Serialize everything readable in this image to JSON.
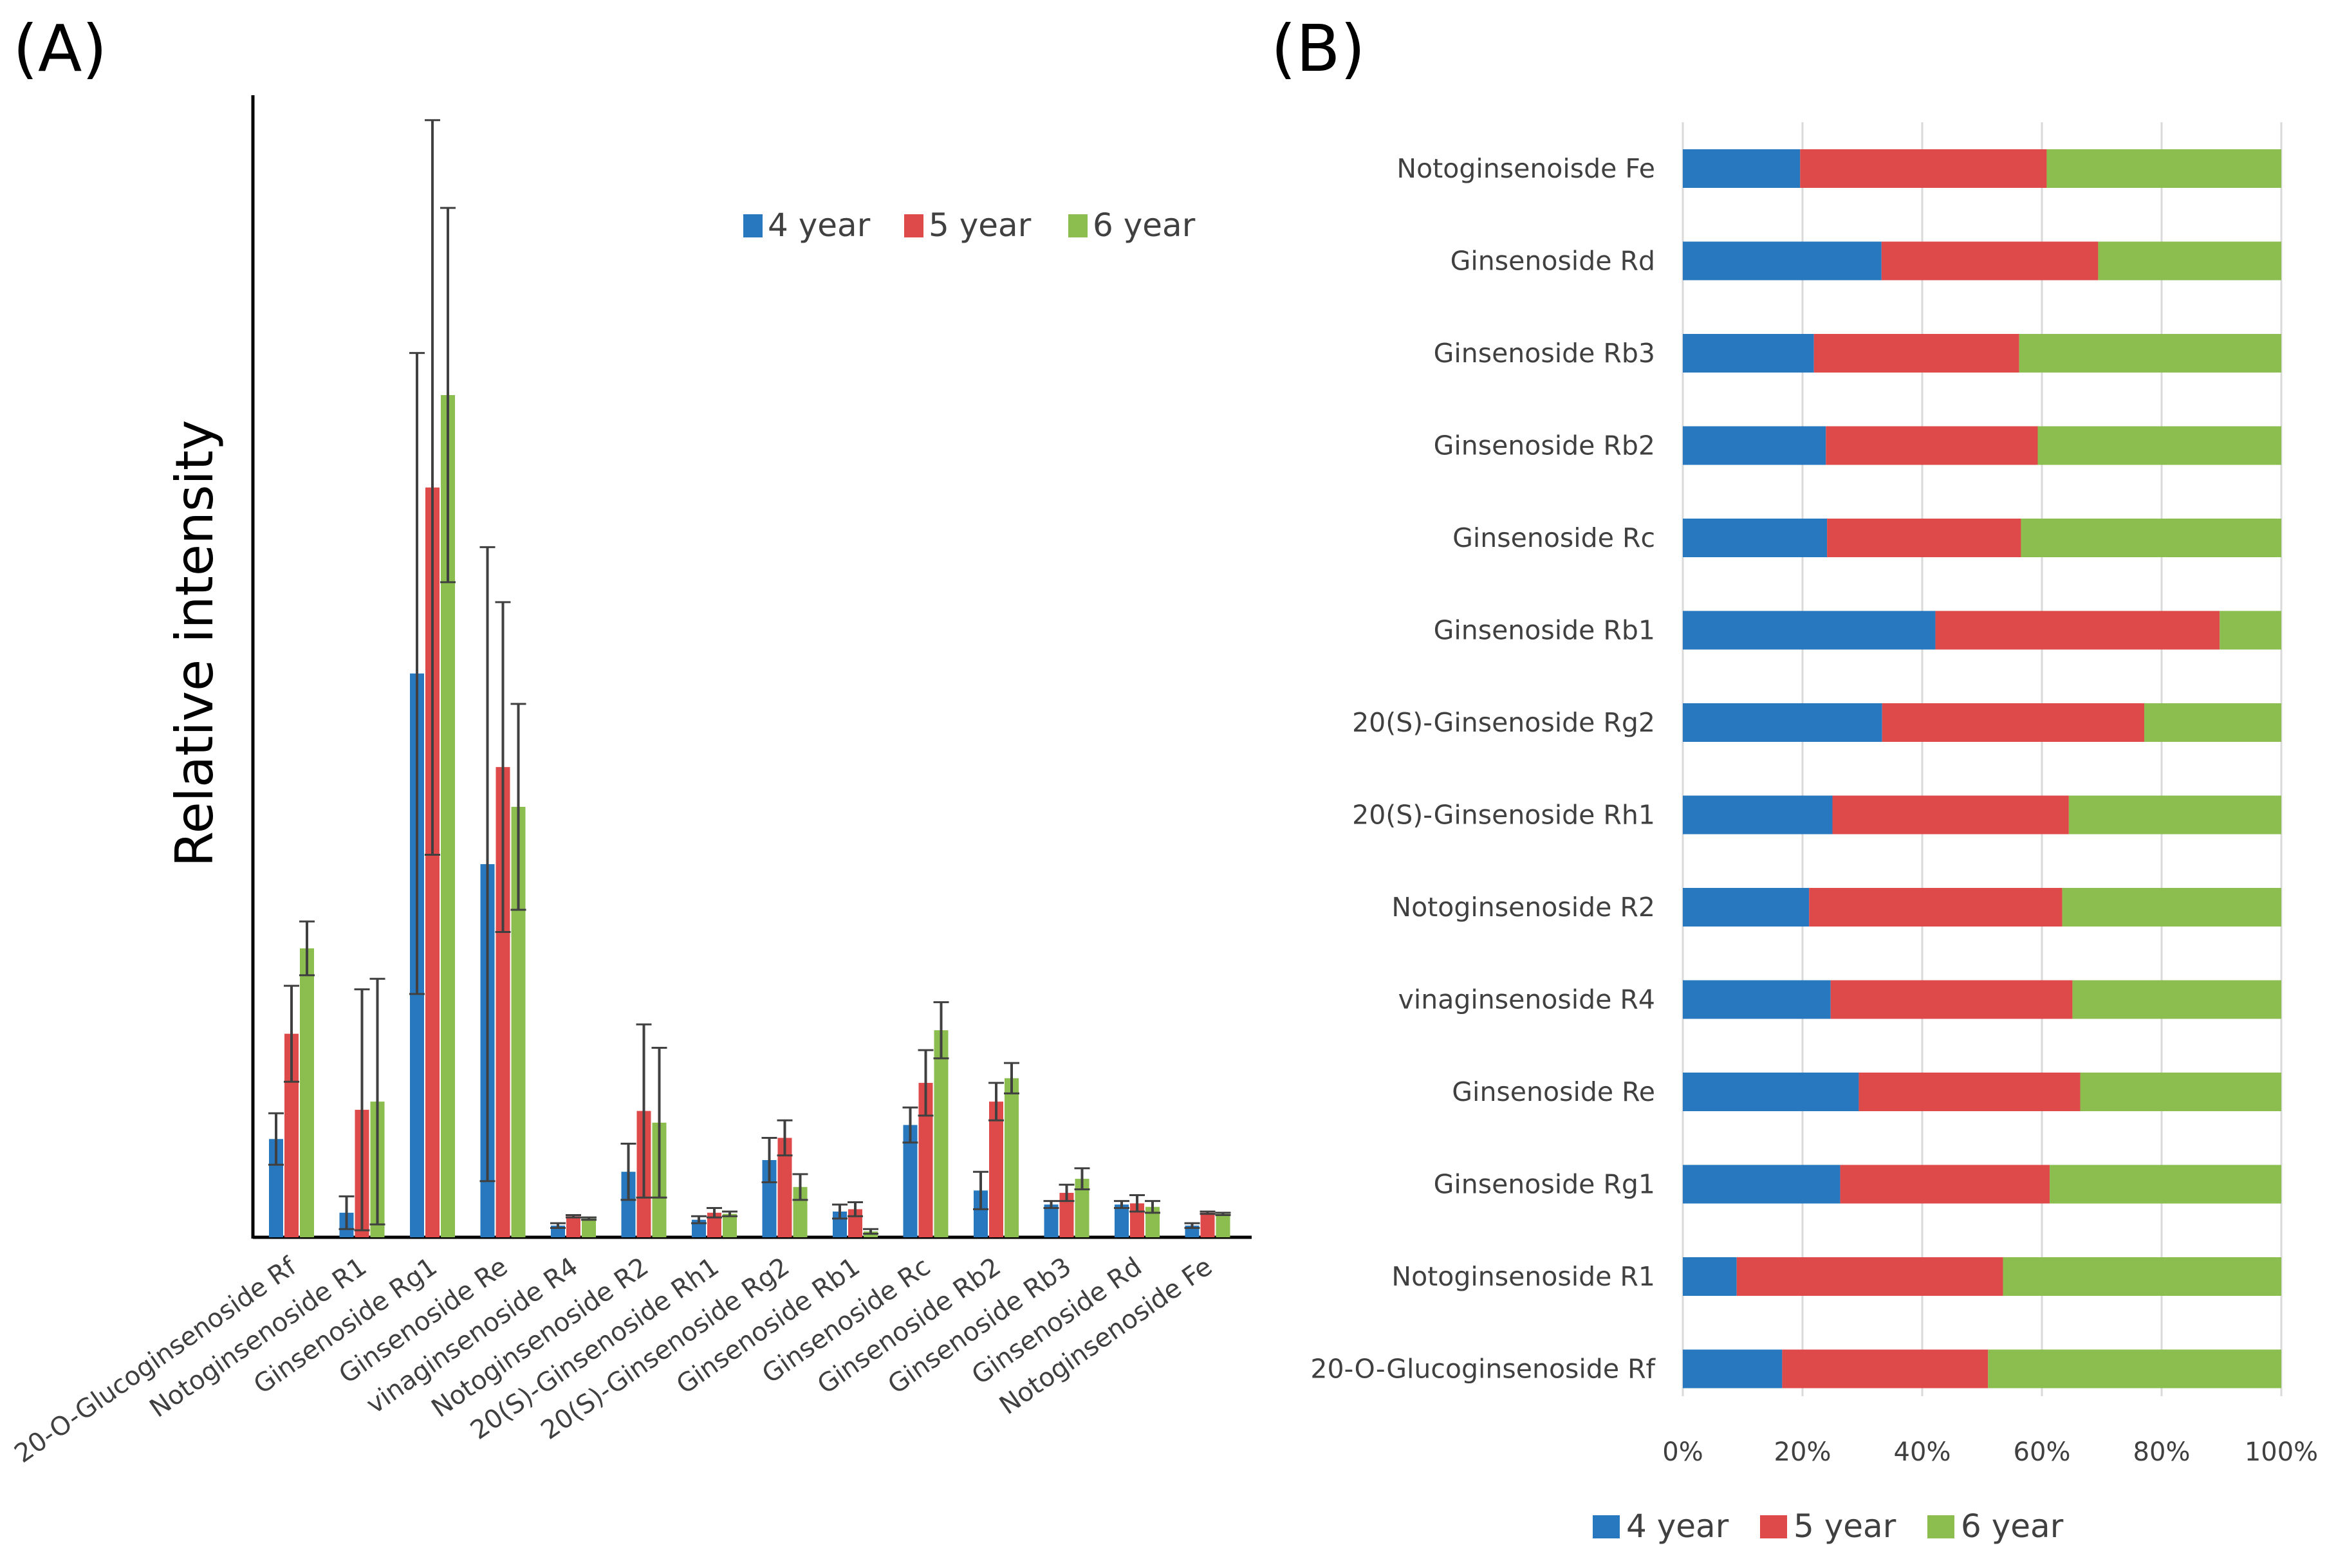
{
  "panel_a_label": "(A)",
  "panel_b_label": "(B)",
  "colors": {
    "4 year": "#2778BE",
    "5 year": "#DE4A4A",
    "6 year": "#8BBD4F",
    "error": "#404040"
  },
  "chart_data": [
    {
      "type": "bar",
      "title": "(A)",
      "xlabel": "",
      "ylabel": "Relative intensity",
      "ylim": [
        0,
        100
      ],
      "grid": false,
      "legend_position": "top-right",
      "categories": [
        "20-O-Glucoginsenoside Rf",
        "Notoginsenoside R1",
        "Ginsenoside Rg1",
        "Ginsenoside Re",
        "vinaginsenoside R4",
        "Notoginsenoside R2",
        "20(S)-Ginsenoside Rh1",
        "20(S)-Ginsenoside Rg2",
        "Ginsenoside Rb1",
        "Ginsenoside Rc",
        "Ginsenoside Rb2",
        "Ginsenoside Rb3",
        "Ginsenoside Rd",
        "Notoginsenoside Fe"
      ],
      "series": [
        {
          "name": "4 year",
          "values": [
            8.4,
            2.1,
            48.2,
            31.9,
            1.0,
            5.6,
            1.5,
            6.6,
            2.2,
            9.6,
            4.0,
            2.8,
            2.8,
            1.0
          ],
          "errors": [
            2.2,
            1.4,
            27.4,
            27.1,
            0.2,
            2.4,
            0.3,
            1.9,
            0.6,
            1.5,
            1.6,
            0.3,
            0.3,
            0.2
          ]
        },
        {
          "name": "5 year",
          "values": [
            17.4,
            10.9,
            64.1,
            40.2,
            1.8,
            10.8,
            2.1,
            8.5,
            2.4,
            13.2,
            11.6,
            3.8,
            2.9,
            2.1
          ],
          "errors": [
            4.1,
            10.3,
            31.4,
            14.1,
            0.1,
            7.4,
            0.4,
            1.5,
            0.6,
            2.8,
            1.6,
            0.7,
            0.7,
            0.1
          ]
        },
        {
          "name": "6 year",
          "values": [
            24.7,
            11.6,
            72.0,
            36.8,
            1.6,
            9.8,
            2.0,
            4.3,
            0.5,
            17.7,
            13.6,
            5.0,
            2.6,
            2.0
          ],
          "errors": [
            2.3,
            10.5,
            16.0,
            8.8,
            0.1,
            6.4,
            0.2,
            1.1,
            0.2,
            2.4,
            1.3,
            0.9,
            0.5,
            0.1
          ]
        }
      ]
    },
    {
      "type": "bar",
      "orientation": "horizontal",
      "stacked": "percent",
      "title": "(B)",
      "xlabel": "",
      "ylabel": "",
      "xlim": [
        0,
        100
      ],
      "xtick_labels": [
        "0%",
        "20%",
        "40%",
        "60%",
        "80%",
        "100%"
      ],
      "grid": true,
      "legend_position": "bottom",
      "categories": [
        "Notoginsenoisde Fe",
        "Ginsenoside Rd",
        "Ginsenoside Rb3",
        "Ginsenoside Rb2",
        "Ginsenoside Rc",
        "Ginsenoside Rb1",
        "20(S)-Ginsenoside Rg2",
        "20(S)-Ginsenoside Rh1",
        "Notoginsenoside R2",
        "vinaginsenoside R4",
        "Ginsenoside Re",
        "Ginsenoside Rg1",
        "Notoginsenoside R1",
        "20-O-Glucoginsenoside Rf"
      ],
      "series": [
        {
          "name": "4 year",
          "values": [
            19.6,
            33.2,
            21.9,
            23.9,
            24.1,
            42.2,
            33.3,
            25.0,
            21.1,
            24.7,
            29.4,
            26.3,
            9.0,
            16.6
          ]
        },
        {
          "name": "5 year",
          "values": [
            41.2,
            36.2,
            34.3,
            35.4,
            32.4,
            47.5,
            43.8,
            39.5,
            42.3,
            40.4,
            37.0,
            35.0,
            44.5,
            34.4
          ]
        },
        {
          "name": "6 year",
          "values": [
            39.2,
            30.6,
            43.8,
            40.7,
            43.5,
            10.3,
            22.9,
            35.5,
            36.6,
            34.9,
            33.6,
            38.7,
            46.5,
            49.0
          ]
        }
      ]
    }
  ]
}
